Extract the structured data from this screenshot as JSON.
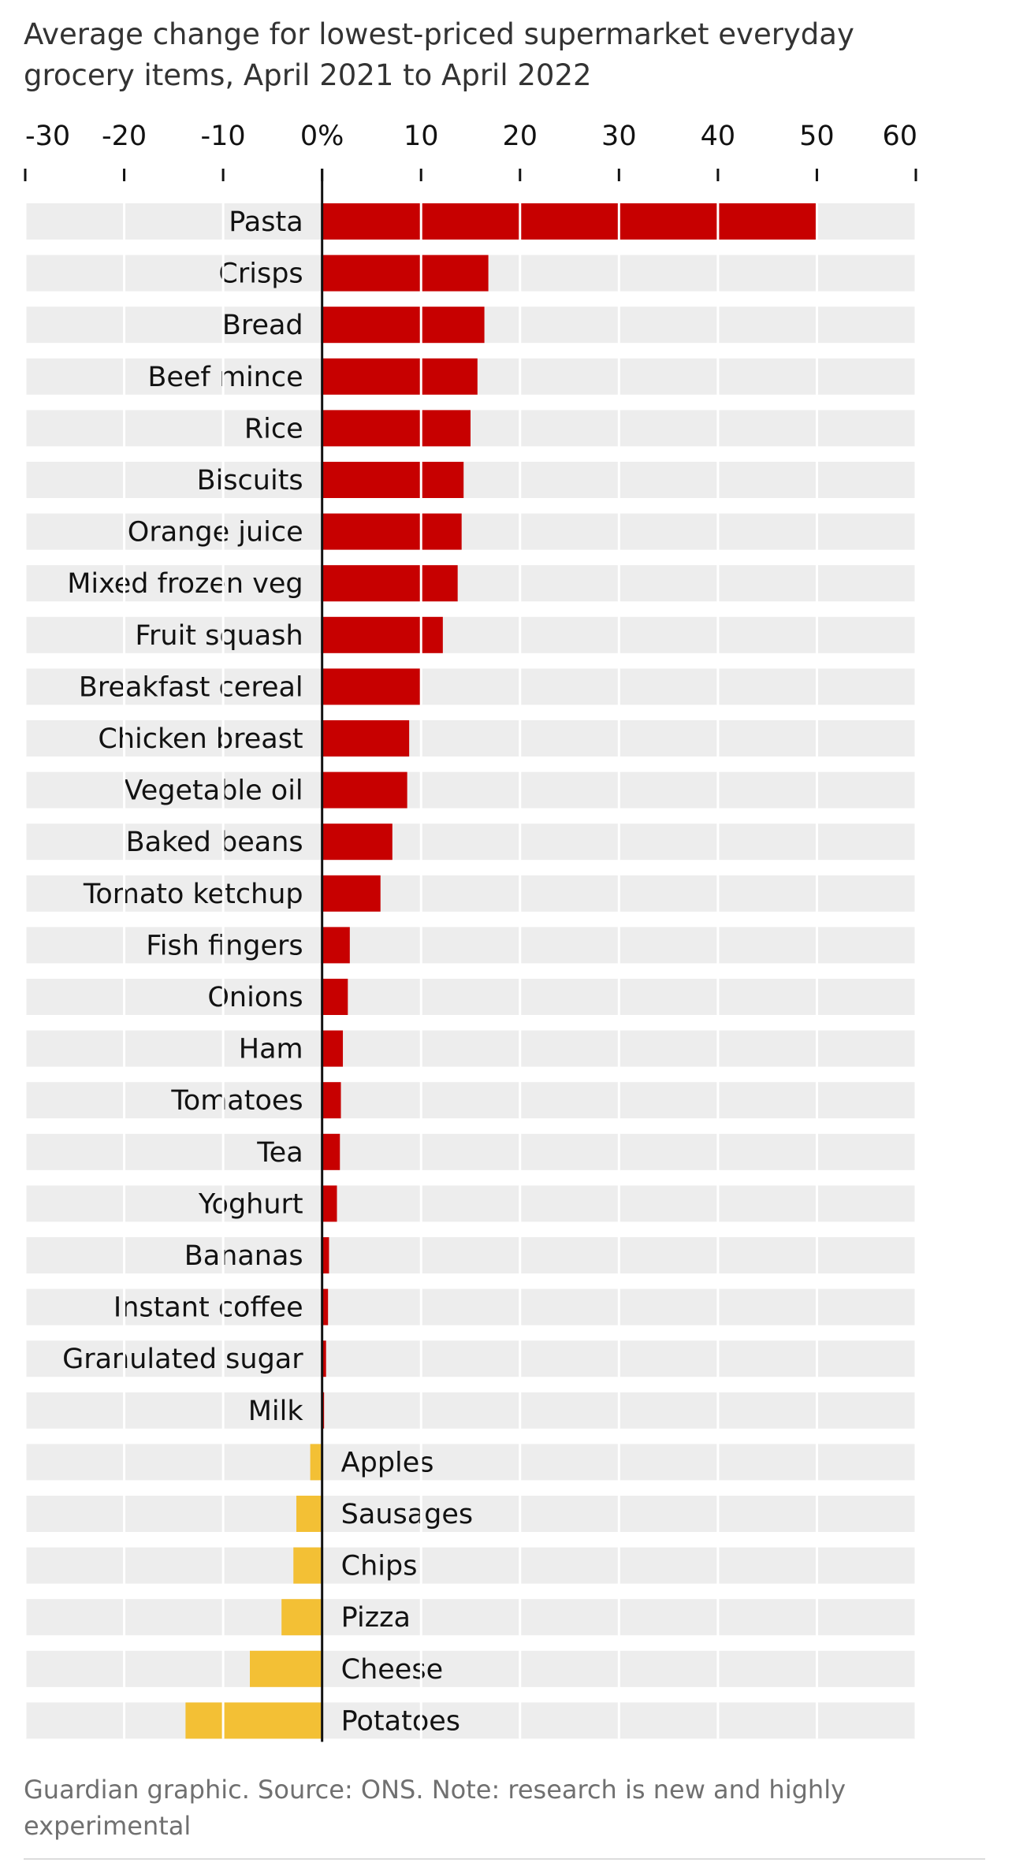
{
  "chart_data": {
    "type": "bar",
    "orientation": "horizontal",
    "title": "Average change for lowest-priced supermarket everyday grocery items, April 2021 to April 2022",
    "xlim": [
      -30,
      60
    ],
    "ticks": [
      {
        "value": -30,
        "label": "-30"
      },
      {
        "value": -20,
        "label": "-20"
      },
      {
        "value": -10,
        "label": "-10"
      },
      {
        "value": 0,
        "label": "0%"
      },
      {
        "value": 10,
        "label": "10"
      },
      {
        "value": 20,
        "label": "20"
      },
      {
        "value": 30,
        "label": "30"
      },
      {
        "value": 40,
        "label": "40"
      },
      {
        "value": 50,
        "label": "50"
      },
      {
        "value": 60,
        "label": "60"
      }
    ],
    "grid": true,
    "categories": [
      "Pasta",
      "Crisps",
      "Bread",
      "Beef mince",
      "Rice",
      "Biscuits",
      "Orange juice",
      "Mixed frozen veg",
      "Fruit squash",
      "Breakfast cereal",
      "Chicken breast",
      "Vegetable oil",
      "Baked beans",
      "Tomato ketchup",
      "Fish fingers",
      "Onions",
      "Ham",
      "Tomatoes",
      "Tea",
      "Yoghurt",
      "Bananas",
      "Instant coffee",
      "Granulated sugar",
      "Milk",
      "Apples",
      "Sausages",
      "Chips",
      "Pizza",
      "Cheese",
      "Potatoes"
    ],
    "values": [
      50,
      16.8,
      16.4,
      15.7,
      15,
      14.3,
      14.1,
      13.7,
      12.2,
      9.9,
      8.8,
      8.6,
      7.1,
      5.9,
      2.8,
      2.6,
      2.1,
      1.9,
      1.8,
      1.5,
      0.7,
      0.6,
      0.4,
      0.2,
      -1.2,
      -2.6,
      -2.9,
      -4.1,
      -7.3,
      -13.8
    ],
    "colors": {
      "positive": "#c70000",
      "negative": "#f3c035",
      "row_background": "#ededed",
      "gridline": "#ffffff",
      "zero_line": "#121212"
    }
  },
  "footer": {
    "source": "Guardian graphic. Source: ONS. Note: research is new and highly experimental"
  }
}
